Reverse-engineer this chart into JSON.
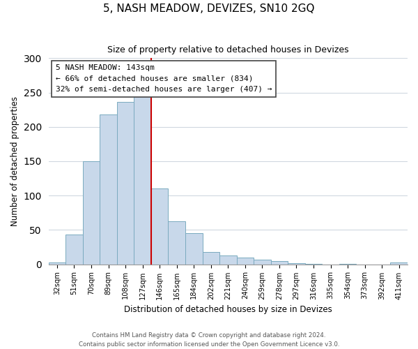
{
  "title": "5, NASH MEADOW, DEVIZES, SN10 2GQ",
  "subtitle": "Size of property relative to detached houses in Devizes",
  "xlabel": "Distribution of detached houses by size in Devizes",
  "ylabel": "Number of detached properties",
  "bar_labels": [
    "32sqm",
    "51sqm",
    "70sqm",
    "89sqm",
    "108sqm",
    "127sqm",
    "146sqm",
    "165sqm",
    "184sqm",
    "202sqm",
    "221sqm",
    "240sqm",
    "259sqm",
    "278sqm",
    "297sqm",
    "316sqm",
    "335sqm",
    "354sqm",
    "373sqm",
    "392sqm",
    "411sqm"
  ],
  "bar_heights": [
    3,
    43,
    150,
    218,
    236,
    248,
    110,
    63,
    45,
    18,
    13,
    10,
    7,
    5,
    2,
    1,
    0,
    1,
    0,
    0,
    3
  ],
  "bar_color": "#c8d8ea",
  "bar_edge_color": "#7aaabf",
  "vline_x_idx": 5,
  "vline_color": "#cc0000",
  "ylim": [
    0,
    300
  ],
  "yticks": [
    0,
    50,
    100,
    150,
    200,
    250,
    300
  ],
  "annotation_title": "5 NASH MEADOW: 143sqm",
  "annotation_line1": "← 66% of detached houses are smaller (834)",
  "annotation_line2": "32% of semi-detached houses are larger (407) →",
  "footer_line1": "Contains HM Land Registry data © Crown copyright and database right 2024.",
  "footer_line2": "Contains public sector information licensed under the Open Government Licence v3.0.",
  "bg_color": "#ffffff",
  "grid_color": "#d0d8e0"
}
